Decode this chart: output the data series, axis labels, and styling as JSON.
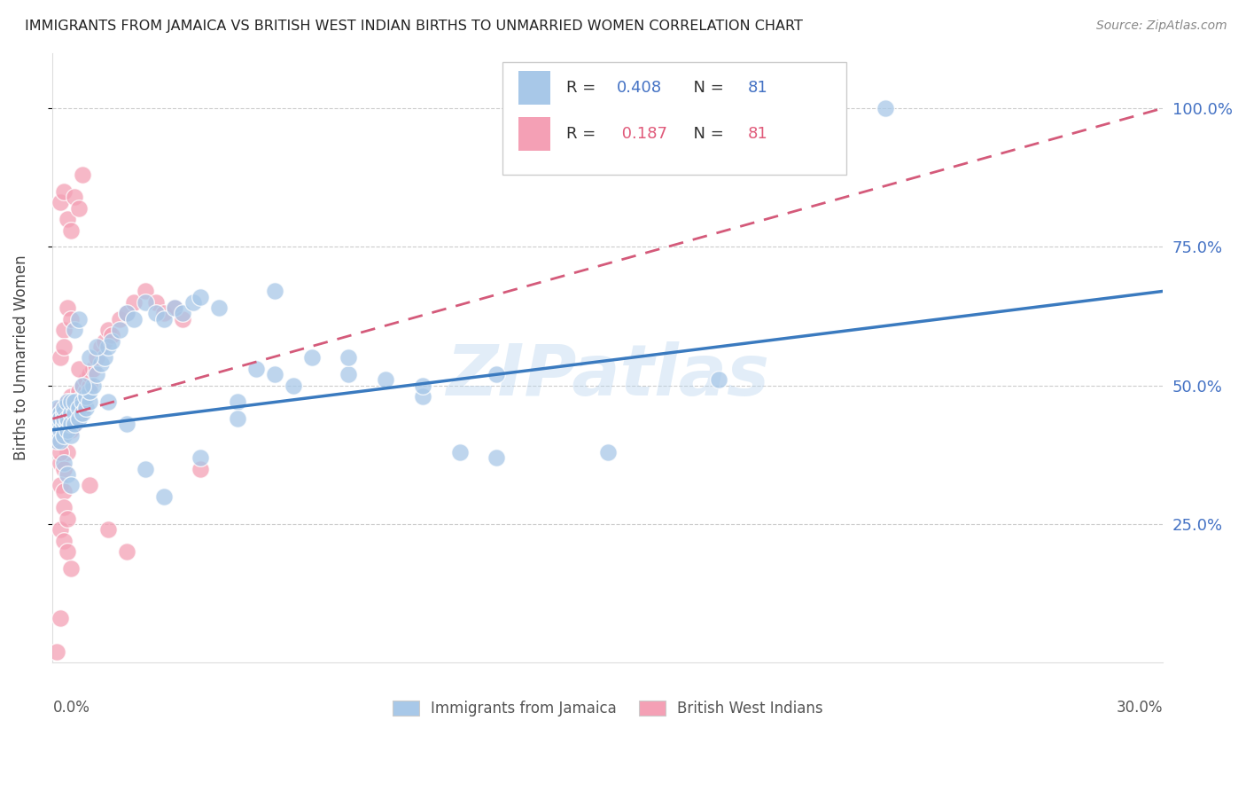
{
  "title": "IMMIGRANTS FROM JAMAICA VS BRITISH WEST INDIAN BIRTHS TO UNMARRIED WOMEN CORRELATION CHART",
  "source": "Source: ZipAtlas.com",
  "ylabel": "Births to Unmarried Women",
  "legend_blue_label": "Immigrants from Jamaica",
  "legend_pink_label": "British West Indians",
  "R_blue": 0.408,
  "N_blue": 81,
  "R_pink": 0.187,
  "N_pink": 81,
  "blue_color": "#a8c8e8",
  "pink_color": "#f4a0b5",
  "blue_line_color": "#3a7abf",
  "pink_line_color": "#d45a7a",
  "blue_scatter_x": [
    0.001,
    0.001,
    0.001,
    0.001,
    0.002,
    0.002,
    0.002,
    0.002,
    0.002,
    0.003,
    0.003,
    0.003,
    0.003,
    0.003,
    0.004,
    0.004,
    0.004,
    0.004,
    0.005,
    0.005,
    0.005,
    0.005,
    0.006,
    0.006,
    0.006,
    0.007,
    0.007,
    0.008,
    0.008,
    0.009,
    0.009,
    0.01,
    0.01,
    0.011,
    0.012,
    0.013,
    0.014,
    0.015,
    0.016,
    0.018,
    0.02,
    0.022,
    0.025,
    0.028,
    0.03,
    0.033,
    0.035,
    0.038,
    0.04,
    0.045,
    0.05,
    0.055,
    0.06,
    0.065,
    0.07,
    0.08,
    0.09,
    0.1,
    0.11,
    0.12,
    0.003,
    0.004,
    0.005,
    0.006,
    0.007,
    0.008,
    0.01,
    0.012,
    0.015,
    0.02,
    0.025,
    0.03,
    0.04,
    0.05,
    0.06,
    0.08,
    0.1,
    0.12,
    0.15,
    0.18,
    0.225
  ],
  "blue_scatter_y": [
    0.42,
    0.44,
    0.46,
    0.4,
    0.43,
    0.45,
    0.42,
    0.44,
    0.4,
    0.43,
    0.45,
    0.41,
    0.44,
    0.46,
    0.43,
    0.47,
    0.42,
    0.44,
    0.45,
    0.43,
    0.47,
    0.41,
    0.45,
    0.43,
    0.47,
    0.46,
    0.44,
    0.47,
    0.45,
    0.46,
    0.48,
    0.47,
    0.49,
    0.5,
    0.52,
    0.54,
    0.55,
    0.57,
    0.58,
    0.6,
    0.63,
    0.62,
    0.65,
    0.63,
    0.62,
    0.64,
    0.63,
    0.65,
    0.66,
    0.64,
    0.47,
    0.53,
    0.52,
    0.5,
    0.55,
    0.52,
    0.51,
    0.48,
    0.38,
    0.37,
    0.36,
    0.34,
    0.32,
    0.6,
    0.62,
    0.5,
    0.55,
    0.57,
    0.47,
    0.43,
    0.35,
    0.3,
    0.37,
    0.44,
    0.67,
    0.55,
    0.5,
    0.52,
    0.38,
    0.51,
    1.0
  ],
  "pink_scatter_x": [
    0.001,
    0.001,
    0.001,
    0.001,
    0.001,
    0.002,
    0.002,
    0.002,
    0.002,
    0.002,
    0.003,
    0.003,
    0.003,
    0.003,
    0.003,
    0.004,
    0.004,
    0.004,
    0.004,
    0.005,
    0.005,
    0.005,
    0.005,
    0.006,
    0.006,
    0.006,
    0.007,
    0.007,
    0.007,
    0.008,
    0.008,
    0.008,
    0.009,
    0.009,
    0.01,
    0.01,
    0.011,
    0.012,
    0.013,
    0.014,
    0.015,
    0.016,
    0.018,
    0.02,
    0.022,
    0.025,
    0.028,
    0.03,
    0.033,
    0.035,
    0.002,
    0.003,
    0.004,
    0.005,
    0.006,
    0.007,
    0.008,
    0.003,
    0.004,
    0.005,
    0.002,
    0.003,
    0.004,
    0.002,
    0.003,
    0.002,
    0.003,
    0.004,
    0.005,
    0.002,
    0.003,
    0.004,
    0.002,
    0.003,
    0.002,
    0.04,
    0.02,
    0.015,
    0.01,
    0.007,
    0.001
  ],
  "pink_scatter_y": [
    0.43,
    0.45,
    0.42,
    0.44,
    0.4,
    0.44,
    0.42,
    0.46,
    0.43,
    0.45,
    0.46,
    0.43,
    0.45,
    0.42,
    0.44,
    0.45,
    0.43,
    0.47,
    0.44,
    0.46,
    0.44,
    0.48,
    0.42,
    0.46,
    0.43,
    0.47,
    0.47,
    0.45,
    0.49,
    0.48,
    0.46,
    0.5,
    0.49,
    0.51,
    0.5,
    0.52,
    0.53,
    0.55,
    0.57,
    0.58,
    0.6,
    0.59,
    0.62,
    0.63,
    0.65,
    0.67,
    0.65,
    0.63,
    0.64,
    0.62,
    0.83,
    0.85,
    0.8,
    0.78,
    0.84,
    0.82,
    0.88,
    0.6,
    0.64,
    0.62,
    0.36,
    0.35,
    0.38,
    0.32,
    0.31,
    0.24,
    0.22,
    0.2,
    0.17,
    0.38,
    0.28,
    0.26,
    0.55,
    0.57,
    0.08,
    0.35,
    0.2,
    0.24,
    0.32,
    0.53,
    0.02
  ]
}
